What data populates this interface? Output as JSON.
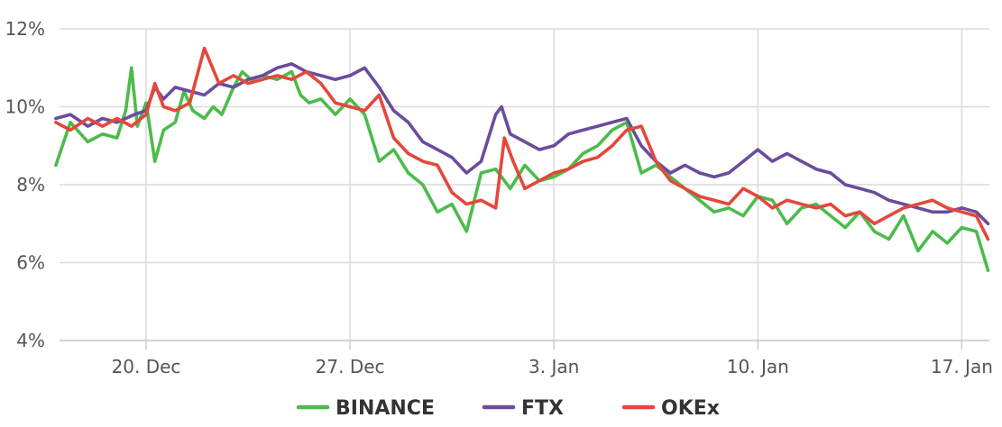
{
  "chart_data": {
    "type": "line",
    "xlabel": "",
    "ylabel": "",
    "ylim": [
      4,
      12
    ],
    "y_ticks": [
      "4%",
      "6%",
      "8%",
      "10%",
      "12%"
    ],
    "x_tick_labels": [
      {
        "day": 4,
        "label": "20. Dec"
      },
      {
        "day": 11,
        "label": "27. Dec"
      },
      {
        "day": 18,
        "label": "3. Jan"
      },
      {
        "day": 25,
        "label": "10. Jan"
      },
      {
        "day": 32,
        "label": "17. Jan"
      }
    ],
    "x_range": [
      0.9,
      32.9
    ],
    "grid": "vertical at x ticks, horizontal at y ticks",
    "legend_position": "bottom-center",
    "series": [
      {
        "name": "BINANCE",
        "color": "#4cbb4c",
        "x": [
          0.9,
          1.4,
          2.0,
          2.5,
          3.0,
          3.3,
          3.5,
          3.7,
          4.0,
          4.3,
          4.6,
          5.0,
          5.3,
          5.6,
          6.0,
          6.3,
          6.6,
          7.0,
          7.3,
          7.6,
          8.0,
          8.5,
          9.0,
          9.3,
          9.6,
          10.0,
          10.5,
          11.0,
          11.5,
          12.0,
          12.5,
          13.0,
          13.5,
          14.0,
          14.5,
          15.0,
          15.5,
          16.0,
          16.5,
          17.0,
          17.5,
          18.0,
          18.5,
          19.0,
          19.5,
          20.0,
          20.5,
          21.0,
          21.5,
          22.0,
          22.5,
          23.0,
          23.5,
          24.0,
          24.5,
          25.0,
          25.5,
          26.0,
          26.5,
          27.0,
          27.5,
          28.0,
          28.5,
          29.0,
          29.5,
          30.0,
          30.5,
          31.0,
          31.5,
          32.0,
          32.5,
          32.9
        ],
        "y": [
          8.5,
          9.6,
          9.1,
          9.3,
          9.2,
          9.9,
          11.0,
          9.5,
          10.1,
          8.6,
          9.4,
          9.6,
          10.4,
          9.9,
          9.7,
          10.0,
          9.8,
          10.5,
          10.9,
          10.7,
          10.8,
          10.7,
          10.9,
          10.3,
          10.1,
          10.2,
          9.8,
          10.2,
          9.8,
          8.6,
          8.9,
          8.3,
          8.0,
          7.3,
          7.5,
          6.8,
          8.3,
          8.4,
          7.9,
          8.5,
          8.1,
          8.2,
          8.4,
          8.8,
          9.0,
          9.4,
          9.6,
          8.3,
          8.5,
          8.2,
          7.9,
          7.6,
          7.3,
          7.4,
          7.2,
          7.7,
          7.6,
          7.0,
          7.4,
          7.5,
          7.2,
          6.9,
          7.3,
          6.8,
          6.6,
          7.2,
          6.3,
          6.8,
          6.5,
          6.9,
          6.8,
          5.8
        ]
      },
      {
        "name": "FTX",
        "color": "#6a4c9c",
        "x": [
          0.9,
          1.4,
          2.0,
          2.5,
          3.0,
          3.3,
          3.6,
          4.0,
          4.3,
          4.6,
          5.0,
          5.5,
          6.0,
          6.5,
          7.0,
          7.5,
          8.0,
          8.5,
          9.0,
          9.5,
          10.0,
          10.5,
          11.0,
          11.5,
          12.0,
          12.5,
          13.0,
          13.5,
          14.0,
          14.5,
          15.0,
          15.5,
          16.0,
          16.2,
          16.5,
          17.0,
          17.5,
          18.0,
          18.5,
          19.0,
          19.5,
          20.0,
          20.5,
          21.0,
          21.5,
          22.0,
          22.5,
          23.0,
          23.5,
          24.0,
          24.5,
          25.0,
          25.5,
          26.0,
          26.5,
          27.0,
          27.5,
          28.0,
          28.5,
          29.0,
          29.5,
          30.0,
          30.5,
          31.0,
          31.5,
          32.0,
          32.5,
          32.9
        ],
        "y": [
          9.7,
          9.8,
          9.5,
          9.7,
          9.6,
          9.7,
          9.8,
          9.9,
          10.5,
          10.2,
          10.5,
          10.4,
          10.3,
          10.6,
          10.5,
          10.7,
          10.8,
          11.0,
          11.1,
          10.9,
          10.8,
          10.7,
          10.8,
          11.0,
          10.5,
          9.9,
          9.6,
          9.1,
          8.9,
          8.7,
          8.3,
          8.6,
          9.8,
          10.0,
          9.3,
          9.1,
          8.9,
          9.0,
          9.3,
          9.4,
          9.5,
          9.6,
          9.7,
          9.0,
          8.6,
          8.3,
          8.5,
          8.3,
          8.2,
          8.3,
          8.6,
          8.9,
          8.6,
          8.8,
          8.6,
          8.4,
          8.3,
          8.0,
          7.9,
          7.8,
          7.6,
          7.5,
          7.4,
          7.3,
          7.3,
          7.4,
          7.3,
          7.0
        ]
      },
      {
        "name": "OKEx",
        "color": "#e5473b",
        "x": [
          0.9,
          1.4,
          2.0,
          2.5,
          3.0,
          3.5,
          4.0,
          4.3,
          4.6,
          5.0,
          5.5,
          6.0,
          6.5,
          7.0,
          7.5,
          8.0,
          8.5,
          9.0,
          9.5,
          10.0,
          10.5,
          11.0,
          11.5,
          12.0,
          12.5,
          13.0,
          13.5,
          14.0,
          14.5,
          15.0,
          15.5,
          16.0,
          16.3,
          16.6,
          17.0,
          17.5,
          18.0,
          18.5,
          19.0,
          19.5,
          20.0,
          20.5,
          21.0,
          21.5,
          22.0,
          22.5,
          23.0,
          23.5,
          24.0,
          24.5,
          25.0,
          25.5,
          26.0,
          26.5,
          27.0,
          27.5,
          28.0,
          28.5,
          29.0,
          29.5,
          30.0,
          30.5,
          31.0,
          31.5,
          32.0,
          32.5,
          32.9
        ],
        "y": [
          9.6,
          9.4,
          9.7,
          9.5,
          9.7,
          9.5,
          9.8,
          10.6,
          10.0,
          9.9,
          10.1,
          11.5,
          10.6,
          10.8,
          10.6,
          10.7,
          10.8,
          10.7,
          10.9,
          10.6,
          10.1,
          10.0,
          9.9,
          10.3,
          9.2,
          8.8,
          8.6,
          8.5,
          7.8,
          7.5,
          7.6,
          7.4,
          9.2,
          8.6,
          7.9,
          8.1,
          8.3,
          8.4,
          8.6,
          8.7,
          9.0,
          9.4,
          9.5,
          8.6,
          8.1,
          7.9,
          7.7,
          7.6,
          7.5,
          7.9,
          7.7,
          7.4,
          7.6,
          7.5,
          7.4,
          7.5,
          7.2,
          7.3,
          7.0,
          7.2,
          7.4,
          7.5,
          7.6,
          7.4,
          7.3,
          7.2,
          6.6
        ]
      }
    ]
  }
}
